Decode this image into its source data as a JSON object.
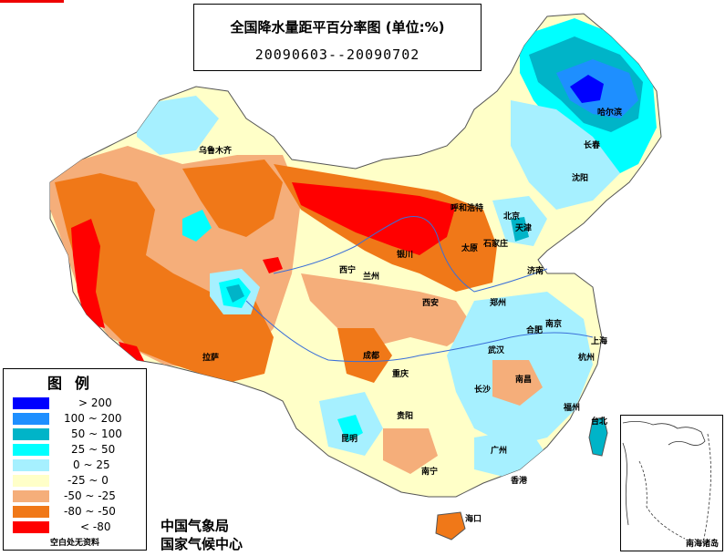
{
  "title": "全国降水量距平百分率图 (单位:%)",
  "date_range": "20090603--20090702",
  "legend": {
    "title": "图例",
    "items": [
      {
        "label": "> 200",
        "color": "#0000ff"
      },
      {
        "label": "100 ~ 200",
        "color": "#1e8fff"
      },
      {
        "label": "50 ~ 100",
        "color": "#00b4c8"
      },
      {
        "label": "25 ~ 50",
        "color": "#00ffff"
      },
      {
        "label": "0 ~ 25",
        "color": "#a6f0ff"
      },
      {
        "label": "-25 ~ 0",
        "color": "#ffffc8"
      },
      {
        "label": "-50 ~ -25",
        "color": "#f5ae7a"
      },
      {
        "label": "-80 ~ -50",
        "color": "#f07818"
      },
      {
        "label": "< -80",
        "color": "#ff0000"
      }
    ],
    "note": "空白处无资料"
  },
  "agency": {
    "line1": "中国气象局",
    "line2": "国家气候中心"
  },
  "inset_label": "南海诸岛",
  "cities": [
    "乌鲁木齐",
    "哈尔滨",
    "长春",
    "沈阳",
    "呼和浩特",
    "北京",
    "天津",
    "石家庄",
    "太原",
    "银川",
    "西宁",
    "兰州",
    "济南",
    "西安",
    "郑州",
    "合肥",
    "南京",
    "上海",
    "杭州",
    "武汉",
    "成都",
    "拉萨",
    "重庆",
    "长沙",
    "南昌",
    "福州",
    "贵阳",
    "昆明",
    "台北",
    "广州",
    "南宁",
    "香港",
    "海口"
  ]
}
